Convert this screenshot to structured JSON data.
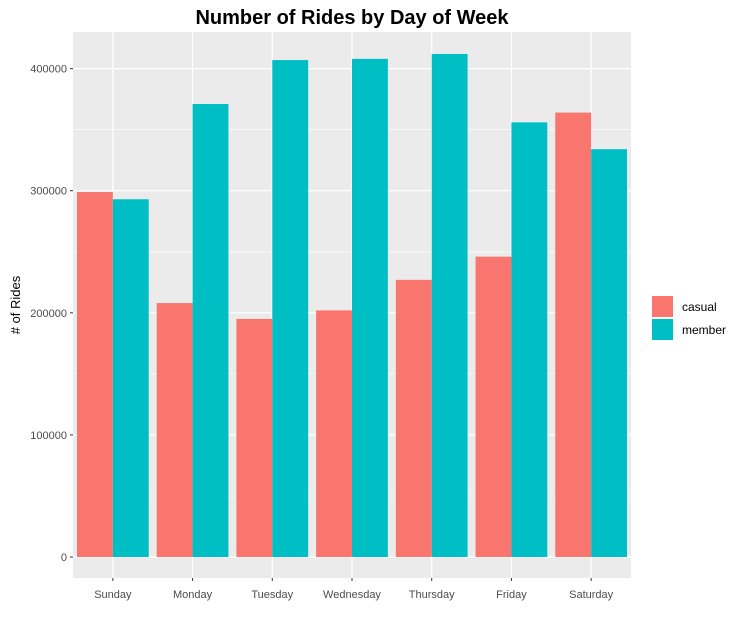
{
  "chart_data": {
    "type": "bar",
    "title": "Number of Rides by Day of Week",
    "xlabel": "",
    "ylabel": "# of Rides",
    "categories": [
      "Sunday",
      "Monday",
      "Tuesday",
      "Wednesday",
      "Thursday",
      "Friday",
      "Saturday"
    ],
    "series": [
      {
        "name": "casual",
        "color": "#F8766D",
        "values": [
          299000,
          208000,
          195000,
          202000,
          227000,
          246000,
          364000
        ]
      },
      {
        "name": "member",
        "color": "#00BFC4",
        "values": [
          293000,
          371000,
          407000,
          408000,
          412000,
          356000,
          334000
        ]
      }
    ],
    "ylim": [
      0,
      430000
    ],
    "yticks": [
      0,
      100000,
      200000,
      300000,
      400000
    ],
    "ytick_labels": [
      "0",
      "100000",
      "200000",
      "300000",
      "400000"
    ],
    "grid": true,
    "legend_position": "right",
    "panel_color": "#EBEBEB"
  }
}
